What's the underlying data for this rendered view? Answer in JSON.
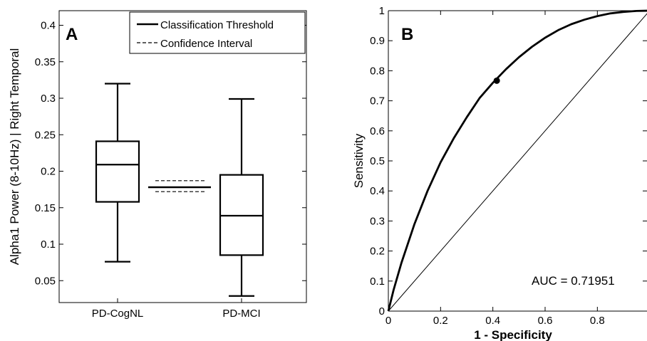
{
  "chart_data": [
    {
      "type": "box",
      "panel_label": "A",
      "title": "",
      "xlabel": "",
      "ylabel": "Alpha1 Power (8-10Hz) | Right Temporal",
      "ylim": [
        0.02,
        0.42
      ],
      "yticks": [
        "0.05",
        "0.1",
        "0.15",
        "0.2",
        "0.25",
        "0.3",
        "0.35",
        "0.4"
      ],
      "categories": [
        "PD-CogNL",
        "PD-MCI"
      ],
      "boxes": [
        {
          "category": "PD-CogNL",
          "min": 0.076,
          "q1": 0.158,
          "median": 0.209,
          "q3": 0.241,
          "max": 0.32
        },
        {
          "category": "PD-MCI",
          "min": 0.029,
          "q1": 0.085,
          "median": 0.139,
          "q3": 0.195,
          "max": 0.299
        }
      ],
      "threshold": 0.178,
      "confidence_interval": [
        0.172,
        0.187
      ],
      "legend": [
        "Classification Threshold",
        "Confidence Interval"
      ],
      "legend_position": "top-right",
      "grid": false
    },
    {
      "type": "line",
      "panel_label": "B",
      "title": "",
      "xlabel": "1 - Specificity",
      "ylabel": "Sensitivity",
      "xlim": [
        0,
        1
      ],
      "ylim": [
        0,
        1
      ],
      "xticks": [
        "0",
        "0.2",
        "0.4",
        "0.6",
        "0.8"
      ],
      "yticks": [
        "0",
        "0.1",
        "0.2",
        "0.3",
        "0.4",
        "0.5",
        "0.6",
        "0.7",
        "0.8",
        "0.9",
        "1"
      ],
      "series": [
        {
          "x": [
            0,
            0.02,
            0.05,
            0.1,
            0.15,
            0.2,
            0.25,
            0.3,
            0.35,
            0.4,
            0.45,
            0.5,
            0.55,
            0.6,
            0.65,
            0.7,
            0.75,
            0.8,
            0.85,
            0.9,
            0.95,
            1
          ],
          "y": [
            0,
            0.07,
            0.16,
            0.29,
            0.4,
            0.495,
            0.575,
            0.645,
            0.71,
            0.76,
            0.805,
            0.845,
            0.88,
            0.91,
            0.935,
            0.955,
            0.97,
            0.982,
            0.991,
            0.996,
            0.999,
            1
          ]
        },
        {
          "x": [
            0,
            1
          ],
          "y": [
            0,
            1
          ]
        }
      ],
      "operating_point": {
        "x": 0.415,
        "y": 0.767
      },
      "annotation": "AUC = 0.71951",
      "grid": false
    }
  ]
}
